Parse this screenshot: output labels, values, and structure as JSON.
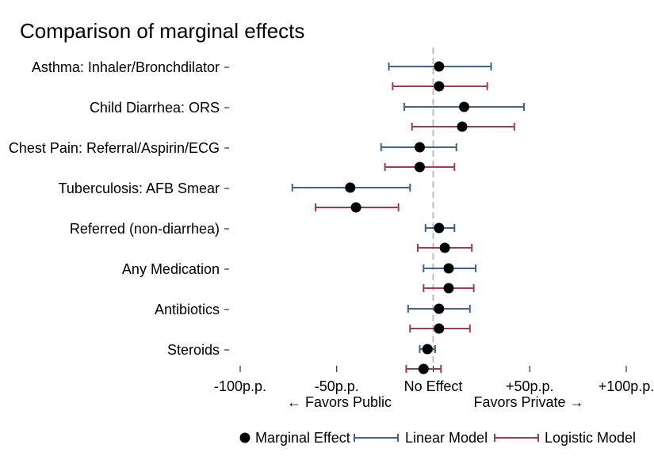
{
  "chart_data": {
    "type": "scatter",
    "title": "Comparison of marginal effects",
    "categories": [
      "Asthma: Inhaler/Bronchdilator",
      "Child Diarrhea: ORS",
      "Chest Pain: Referral/Aspirin/ECG",
      "Tuberculosis: AFB Smear",
      "Referred (non-diarrhea)",
      "Any Medication",
      "Antibiotics",
      "Steroids"
    ],
    "x_ticks": [
      {
        "value": -100,
        "label": "-100p.p."
      },
      {
        "value": -50,
        "label": "-50p.p."
      },
      {
        "value": 0,
        "label": "No Effect"
      },
      {
        "value": 50,
        "label": "+50p.p."
      },
      {
        "value": 100,
        "label": "+100p.p."
      }
    ],
    "xlim": [
      -100,
      100
    ],
    "reference_line": 0,
    "direction_labels": {
      "left": "← Favors Public",
      "right": "Favors Private →"
    },
    "series": [
      {
        "name": "Linear Model",
        "color": "#3a6591",
        "estimates": [
          3,
          16,
          -7,
          -43,
          3,
          8,
          3,
          -3
        ],
        "ci_low": [
          -23,
          -15,
          -27,
          -73,
          -4,
          -5,
          -13,
          -7
        ],
        "ci_high": [
          30,
          47,
          12,
          -12,
          11,
          22,
          19,
          1
        ]
      },
      {
        "name": "Logistic Model",
        "color": "#a03c4c",
        "estimates": [
          3,
          15,
          -7,
          -40,
          6,
          8,
          3,
          -5
        ],
        "ci_low": [
          -21,
          -11,
          -25,
          -61,
          -8,
          -5,
          -12,
          -14
        ],
        "ci_high": [
          28,
          42,
          11,
          -18,
          20,
          21,
          19,
          4
        ]
      }
    ],
    "legend": {
      "placement": "bottom",
      "marker_label": "Marginal Effect",
      "marker_color": "#000000"
    }
  }
}
